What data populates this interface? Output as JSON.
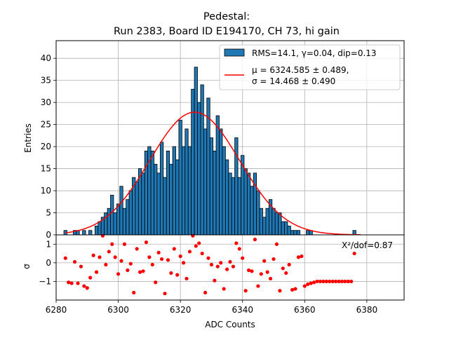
{
  "chart_data": {
    "title_lines": [
      "Pedestal:",
      "Run 2383, Board ID E194170, CH 73, hi gain"
    ],
    "histogram": {
      "type": "bar",
      "ylabel": "Entries",
      "ylim": [
        0,
        44
      ],
      "yticks": [
        0,
        5,
        10,
        15,
        20,
        25,
        30,
        35,
        40
      ],
      "color": "#1f77b4",
      "series_label": "RMS=14.1, γ=0.04, dip=0.13",
      "bins": [
        [
          6283,
          1
        ],
        [
          6286,
          1
        ],
        [
          6287,
          1
        ],
        [
          6289,
          1
        ],
        [
          6291,
          1
        ],
        [
          6293,
          2
        ],
        [
          6294,
          3
        ],
        [
          6295,
          4
        ],
        [
          6296,
          5
        ],
        [
          6297,
          6
        ],
        [
          6298,
          9
        ],
        [
          6299,
          5
        ],
        [
          6300,
          7
        ],
        [
          6301,
          11
        ],
        [
          6302,
          6
        ],
        [
          6303,
          8
        ],
        [
          6304,
          10
        ],
        [
          6305,
          13
        ],
        [
          6306,
          12
        ],
        [
          6307,
          15
        ],
        [
          6308,
          14
        ],
        [
          6309,
          19
        ],
        [
          6310,
          20
        ],
        [
          6311,
          19
        ],
        [
          6312,
          16
        ],
        [
          6313,
          14
        ],
        [
          6314,
          21
        ],
        [
          6315,
          13
        ],
        [
          6316,
          19
        ],
        [
          6317,
          16
        ],
        [
          6318,
          20
        ],
        [
          6319,
          17
        ],
        [
          6320,
          26
        ],
        [
          6321,
          20
        ],
        [
          6322,
          24
        ],
        [
          6323,
          20
        ],
        [
          6324,
          33
        ],
        [
          6325,
          38
        ],
        [
          6326,
          30
        ],
        [
          6327,
          34
        ],
        [
          6328,
          24
        ],
        [
          6329,
          31
        ],
        [
          6330,
          22
        ],
        [
          6331,
          19
        ],
        [
          6332,
          27
        ],
        [
          6333,
          24
        ],
        [
          6334,
          20
        ],
        [
          6335,
          17
        ],
        [
          6336,
          14
        ],
        [
          6337,
          13
        ],
        [
          6338,
          22
        ],
        [
          6339,
          13
        ],
        [
          6340,
          18
        ],
        [
          6341,
          15
        ],
        [
          6342,
          14
        ],
        [
          6343,
          11
        ],
        [
          6344,
          14
        ],
        [
          6345,
          10
        ],
        [
          6346,
          6
        ],
        [
          6347,
          4
        ],
        [
          6348,
          6
        ],
        [
          6349,
          8
        ],
        [
          6350,
          6
        ],
        [
          6351,
          5
        ],
        [
          6352,
          5
        ],
        [
          6353,
          3
        ],
        [
          6354,
          3
        ],
        [
          6355,
          2
        ],
        [
          6356,
          1
        ],
        [
          6357,
          1
        ],
        [
          6358,
          1
        ],
        [
          6361,
          1
        ],
        [
          6362,
          1
        ],
        [
          6376,
          1
        ]
      ]
    },
    "fit": {
      "type": "line",
      "color": "#ff0000",
      "label_lines": [
        "μ = 6324.585 ± 0.489,",
        "σ = 14.468 ± 0.490"
      ],
      "mu": 6324.585,
      "sigma": 14.468,
      "amplitude": 27.8
    },
    "residuals": {
      "type": "scatter",
      "ylabel": "σ",
      "xlabel": "ADC Counts",
      "ylim": [
        -2,
        1.5
      ],
      "yticks": [
        -1,
        0,
        1
      ],
      "color": "#ff0000",
      "annotation": "X²/dof=0.87",
      "points": [
        [
          6283,
          0.25
        ],
        [
          6284,
          -1.05
        ],
        [
          6285,
          -1.1
        ],
        [
          6286,
          0.05
        ],
        [
          6287,
          -1.1
        ],
        [
          6288,
          -0.2
        ],
        [
          6289,
          -1.25
        ],
        [
          6290,
          -1.35
        ],
        [
          6291,
          -0.8
        ],
        [
          6292,
          0.4
        ],
        [
          6293,
          -0.5
        ],
        [
          6294,
          0.3
        ],
        [
          6295,
          1.45
        ],
        [
          6296,
          -0.1
        ],
        [
          6297,
          0.6
        ],
        [
          6298,
          1.0
        ],
        [
          6299,
          0.3
        ],
        [
          6300,
          -0.6
        ],
        [
          6301,
          0.1
        ],
        [
          6302,
          1.0
        ],
        [
          6303,
          -0.4
        ],
        [
          6304,
          -0.05
        ],
        [
          6305,
          -1.6
        ],
        [
          6306,
          0.75
        ],
        [
          6307,
          -0.5
        ],
        [
          6308,
          -0.45
        ],
        [
          6309,
          1.1
        ],
        [
          6310,
          0.3
        ],
        [
          6311,
          -0.1
        ],
        [
          6312,
          -1.05
        ],
        [
          6313,
          0.55
        ],
        [
          6314,
          0.2
        ],
        [
          6315,
          -1.65
        ],
        [
          6316,
          0.15
        ],
        [
          6317,
          -0.55
        ],
        [
          6318,
          0.75
        ],
        [
          6319,
          -0.65
        ],
        [
          6320,
          0.35
        ],
        [
          6321,
          0.0
        ],
        [
          6322,
          -0.85
        ],
        [
          6323,
          0.6
        ],
        [
          6324,
          1.45
        ],
        [
          6325,
          0.9
        ],
        [
          6326,
          1.05
        ],
        [
          6327,
          0.5
        ],
        [
          6328,
          -1.6
        ],
        [
          6329,
          0.25
        ],
        [
          6330,
          -0.1
        ],
        [
          6331,
          -0.95
        ],
        [
          6332,
          -0.2
        ],
        [
          6333,
          0.0
        ],
        [
          6334,
          -1.4
        ],
        [
          6335,
          -0.35
        ],
        [
          6336,
          0.05
        ],
        [
          6337,
          -0.2
        ],
        [
          6338,
          1.05
        ],
        [
          6339,
          0.75
        ],
        [
          6340,
          0.25
        ],
        [
          6341,
          -1.5
        ],
        [
          6342,
          -0.4
        ],
        [
          6343,
          -0.45
        ],
        [
          6344,
          1.25
        ],
        [
          6345,
          -1.25
        ],
        [
          6346,
          -0.6
        ],
        [
          6347,
          0.1
        ],
        [
          6348,
          -0.5
        ],
        [
          6349,
          -0.85
        ],
        [
          6350,
          0.2
        ],
        [
          6351,
          1.0
        ],
        [
          6352,
          -1.5
        ],
        [
          6353,
          -0.3
        ],
        [
          6354,
          -0.55
        ],
        [
          6355,
          -0.1
        ],
        [
          6356,
          -1.45
        ],
        [
          6357,
          -1.4
        ],
        [
          6358,
          0.3
        ],
        [
          6359,
          0.35
        ],
        [
          6360,
          -1.25
        ],
        [
          6361,
          -1.15
        ],
        [
          6362,
          -1.1
        ],
        [
          6363,
          -1.05
        ],
        [
          6364,
          -1.0
        ],
        [
          6365,
          -1.0
        ],
        [
          6366,
          -1.0
        ],
        [
          6367,
          -1.0
        ],
        [
          6368,
          -1.0
        ],
        [
          6369,
          -1.0
        ],
        [
          6370,
          -1.0
        ],
        [
          6371,
          -1.0
        ],
        [
          6372,
          -1.0
        ],
        [
          6373,
          -1.0
        ],
        [
          6374,
          -1.0
        ],
        [
          6375,
          -1.0
        ],
        [
          6376,
          0.5
        ]
      ]
    },
    "xlim": [
      6280,
      6392
    ],
    "xticks": [
      6280,
      6300,
      6320,
      6340,
      6360,
      6380
    ],
    "grid": true,
    "legend_position": "top-right"
  }
}
